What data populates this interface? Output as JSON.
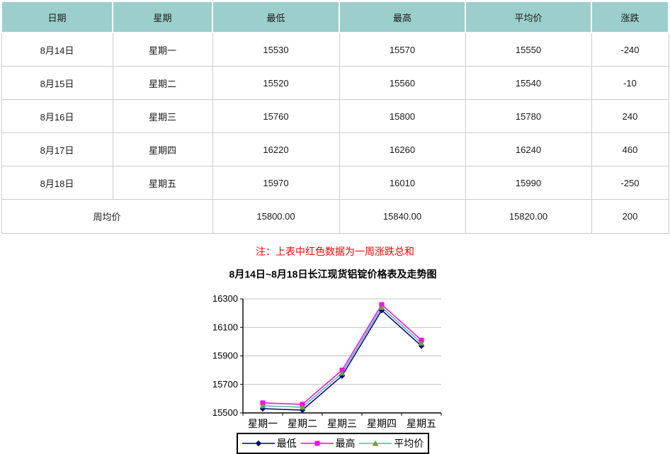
{
  "table": {
    "headers": [
      "日期",
      "星期",
      "最低",
      "最高",
      "平均价",
      "涨跌"
    ],
    "rows": [
      {
        "date": "8月14日",
        "weekday": "星期一",
        "low": "15530",
        "high": "15570",
        "avg": "15550",
        "change": "-240"
      },
      {
        "date": "8月15日",
        "weekday": "星期二",
        "low": "15520",
        "high": "15560",
        "avg": "15540",
        "change": "-10"
      },
      {
        "date": "8月16日",
        "weekday": "星期三",
        "low": "15760",
        "high": "15800",
        "avg": "15780",
        "change": "240"
      },
      {
        "date": "8月17日",
        "weekday": "星期四",
        "low": "16220",
        "high": "16260",
        "avg": "16240",
        "change": "460"
      },
      {
        "date": "8月18日",
        "weekday": "星期五",
        "low": "15970",
        "high": "16010",
        "avg": "15990",
        "change": "-250"
      }
    ],
    "summary": {
      "label": "周均价",
      "low": "15800.00",
      "high": "15840.00",
      "avg": "15820.00",
      "change": "200"
    }
  },
  "note": "注：上表中红色数据为一周涨跌总和",
  "chart_data": {
    "type": "line",
    "title": "8月14日~8月18日长江现货铝锭价格表及走势图",
    "categories": [
      "星期一",
      "星期二",
      "星期三",
      "星期四",
      "星期五"
    ],
    "series": [
      {
        "name": "最低",
        "values": [
          15530,
          15520,
          15760,
          16220,
          15970
        ],
        "color": "#000080",
        "marker": "diamond",
        "marker_color": "#000080"
      },
      {
        "name": "最高",
        "values": [
          15570,
          15560,
          15800,
          16260,
          16010
        ],
        "color": "#FF00FF",
        "marker": "square",
        "marker_color": "#FF00FF"
      },
      {
        "name": "平均价",
        "values": [
          15550,
          15540,
          15780,
          16240,
          15990
        ],
        "color": "#4DBB9E",
        "marker": "triangle",
        "marker_color": "#63A537"
      }
    ],
    "ylim": [
      15500,
      16300
    ],
    "yticks": [
      15500,
      15700,
      15900,
      16100,
      16300
    ],
    "grid": true,
    "legend_position": "bottom"
  },
  "colors": {
    "header_bg": "#9CCFCC",
    "cell_border": "#CCCCCC",
    "highlight_red": "#FF0000",
    "gridline": "#C0C0C0",
    "axis": "#000000"
  }
}
